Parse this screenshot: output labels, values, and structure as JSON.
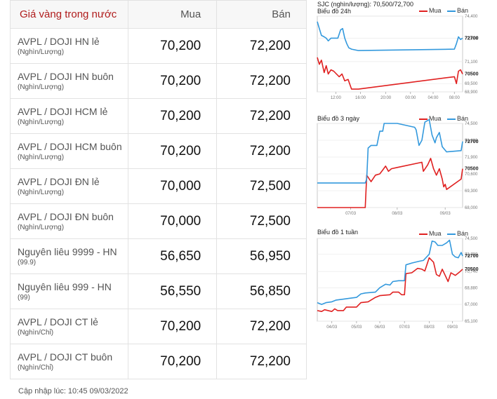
{
  "table": {
    "header": {
      "name": "Giá vàng trong nước",
      "buy": "Mua",
      "sell": "Bán"
    },
    "rows": [
      {
        "product": "AVPL / DOJI HN lẻ",
        "unit": "(Nghìn/Lượng)",
        "buy": "70,200",
        "sell": "72,200"
      },
      {
        "product": "AVPL / DOJI HN buôn",
        "unit": "(Nghìn/Lượng)",
        "buy": "70,200",
        "sell": "72,200"
      },
      {
        "product": "AVPL / DOJI HCM lẻ",
        "unit": "(Nghìn/Lượng)",
        "buy": "70,200",
        "sell": "72,200"
      },
      {
        "product": "AVPL / DOJI HCM buôn",
        "unit": "(Nghìn/Lượng)",
        "buy": "70,200",
        "sell": "72,200"
      },
      {
        "product": "AVPL / DOJI ĐN lẻ",
        "unit": "(Nghìn/Lượng)",
        "buy": "70,000",
        "sell": "72,500"
      },
      {
        "product": "AVPL / DOJI ĐN buôn",
        "unit": "(Nghìn/Lượng)",
        "buy": "70,000",
        "sell": "72,500"
      },
      {
        "product": "Nguyên liêu 9999 - HN",
        "unit": "(99.9)",
        "buy": "56,650",
        "sell": "56,950"
      },
      {
        "product": "Nguyên liêu 999 - HN",
        "unit": "(99)",
        "buy": "56,550",
        "sell": "56,850"
      },
      {
        "product": "AVPL / DOJI CT lẻ",
        "unit": "(Nghìn/Chỉ)",
        "buy": "70,200",
        "sell": "72,200"
      },
      {
        "product": "AVPL / DOJI CT buôn",
        "unit": "(Nghìn/Chỉ)",
        "buy": "70,200",
        "sell": "72,200"
      }
    ]
  },
  "updated": "Cập nhập lúc: 10:45 09/03/2022",
  "sjc_header": "SJC (nghìn/lượng): 70,500/72,700",
  "colors": {
    "buy": "#e02020",
    "sell": "#3399dd",
    "title": "#b01c1c"
  },
  "chart_data": [
    {
      "type": "line",
      "title": "Biểu đồ 24h",
      "x": [
        0,
        1,
        2,
        3,
        4,
        5,
        6,
        7,
        8,
        9,
        10,
        11,
        12,
        13,
        14,
        15,
        16,
        17,
        18,
        19,
        20
      ],
      "xticks": [
        {
          "label": "12:00",
          "x": 2.7
        },
        {
          "label": "16:00",
          "x": 6.3
        },
        {
          "label": "20:00",
          "x": 10.0
        },
        {
          "label": "00:00",
          "x": 13.6
        },
        {
          "label": "04:00",
          "x": 16.9
        },
        {
          "label": "08:00",
          "x": 20.0
        }
      ],
      "yticks": [
        74400,
        72800,
        71100,
        69500,
        68900
      ],
      "ytick_labels": [
        "74,400",
        "72,800",
        "71,100",
        "69,500",
        "68,900"
      ],
      "ylim": [
        68900,
        74400
      ],
      "value_labels": {
        "sell": "72700",
        "buy": "70500"
      },
      "series": [
        {
          "name": "Mua",
          "color": "#e02020",
          "points": [
            [
              0,
              71400
            ],
            [
              0.3,
              70900
            ],
            [
              0.6,
              71200
            ],
            [
              1.0,
              70300
            ],
            [
              1.3,
              70800
            ],
            [
              1.6,
              70200
            ],
            [
              2.0,
              70500
            ],
            [
              2.4,
              70400
            ],
            [
              2.8,
              70200
            ],
            [
              3.2,
              70000
            ],
            [
              3.6,
              70200
            ],
            [
              4.0,
              69700
            ],
            [
              4.5,
              69800
            ],
            [
              5.0,
              69100
            ],
            [
              6.0,
              69100
            ],
            [
              20.0,
              70000
            ],
            [
              20.3,
              69500
            ],
            [
              20.6,
              70400
            ],
            [
              20.9,
              70500
            ],
            [
              21.2,
              70200
            ]
          ]
        },
        {
          "name": "Bán",
          "color": "#3399dd",
          "points": [
            [
              0,
              74000
            ],
            [
              0.3,
              73500
            ],
            [
              0.6,
              73000
            ],
            [
              1.0,
              72900
            ],
            [
              1.3,
              72800
            ],
            [
              1.6,
              72600
            ],
            [
              2.0,
              72800
            ],
            [
              3.0,
              72800
            ],
            [
              3.4,
              73400
            ],
            [
              3.7,
              73500
            ],
            [
              4.0,
              72800
            ],
            [
              4.3,
              72400
            ],
            [
              4.6,
              72100
            ],
            [
              5.0,
              72000
            ],
            [
              6.0,
              71900
            ],
            [
              20.0,
              72000
            ],
            [
              20.3,
              72400
            ],
            [
              20.6,
              72900
            ],
            [
              20.9,
              72700
            ],
            [
              21.2,
              72800
            ]
          ]
        }
      ]
    },
    {
      "type": "line",
      "title": "Biểu đồ 3 ngày",
      "xticks": [
        {
          "label": "07/03",
          "x": 0.23
        },
        {
          "label": "08/03",
          "x": 0.55
        },
        {
          "label": "09/03",
          "x": 0.88
        }
      ],
      "yticks": [
        74500,
        73200,
        71900,
        70600,
        69300,
        68000
      ],
      "ytick_labels": [
        "74,500",
        "73,200",
        "71,900",
        "70,600",
        "69,300",
        "68,000"
      ],
      "ylim": [
        68000,
        74500
      ],
      "value_labels": {
        "sell": "72700",
        "buy": "70500"
      },
      "series": [
        {
          "name": "Mua",
          "color": "#e02020",
          "points": [
            [
              0.0,
              68000
            ],
            [
              0.33,
              68000
            ],
            [
              0.34,
              70500
            ],
            [
              0.37,
              70000
            ],
            [
              0.4,
              70500
            ],
            [
              0.43,
              70600
            ],
            [
              0.45,
              70900
            ],
            [
              0.47,
              71200
            ],
            [
              0.49,
              70800
            ],
            [
              0.51,
              71000
            ],
            [
              0.55,
              71100
            ],
            [
              0.72,
              71500
            ],
            [
              0.73,
              70800
            ],
            [
              0.76,
              71300
            ],
            [
              0.78,
              71800
            ],
            [
              0.8,
              71000
            ],
            [
              0.82,
              70500
            ],
            [
              0.84,
              71000
            ],
            [
              0.86,
              70200
            ],
            [
              0.87,
              69600
            ],
            [
              0.88,
              69800
            ],
            [
              0.89,
              69400
            ],
            [
              0.99,
              70200
            ],
            [
              1.0,
              71000
            ]
          ]
        },
        {
          "name": "Bán",
          "color": "#3399dd",
          "points": [
            [
              0.0,
              69900
            ],
            [
              0.33,
              69900
            ],
            [
              0.34,
              70200
            ],
            [
              0.35,
              72600
            ],
            [
              0.37,
              72800
            ],
            [
              0.41,
              72800
            ],
            [
              0.43,
              73900
            ],
            [
              0.45,
              73900
            ],
            [
              0.46,
              74500
            ],
            [
              0.55,
              74500
            ],
            [
              0.67,
              74200
            ],
            [
              0.68,
              74000
            ],
            [
              0.7,
              72800
            ],
            [
              0.72,
              73200
            ],
            [
              0.74,
              74600
            ],
            [
              0.77,
              74800
            ],
            [
              0.79,
              73600
            ],
            [
              0.81,
              73000
            ],
            [
              0.82,
              73400
            ],
            [
              0.84,
              73800
            ],
            [
              0.86,
              72700
            ],
            [
              0.89,
              72300
            ],
            [
              0.99,
              72400
            ],
            [
              1.0,
              73100
            ]
          ]
        }
      ]
    },
    {
      "type": "line",
      "title": "Biểu đồ 1 tuần",
      "xticks": [
        {
          "label": "04/03",
          "x": 0.1
        },
        {
          "label": "05/03",
          "x": 0.27
        },
        {
          "label": "06/03",
          "x": 0.43
        },
        {
          "label": "07/03",
          "x": 0.6
        },
        {
          "label": "08/03",
          "x": 0.77
        },
        {
          "label": "09/03",
          "x": 0.93
        }
      ],
      "yticks": [
        74500,
        72700,
        70740,
        68880,
        67000,
        65100
      ],
      "ytick_labels": [
        "74,500",
        "72,700",
        "70,740",
        "68,880",
        "67,000",
        "65,100"
      ],
      "ylim": [
        65100,
        74500
      ],
      "value_labels": {
        "sell": "72700",
        "buy": "70500"
      },
      "series": [
        {
          "name": "Mua",
          "color": "#e02020",
          "points": [
            [
              0.0,
              66300
            ],
            [
              0.03,
              66200
            ],
            [
              0.05,
              66400
            ],
            [
              0.1,
              66200
            ],
            [
              0.12,
              66500
            ],
            [
              0.14,
              66300
            ],
            [
              0.18,
              66300
            ],
            [
              0.2,
              66700
            ],
            [
              0.27,
              66700
            ],
            [
              0.3,
              67200
            ],
            [
              0.35,
              67300
            ],
            [
              0.4,
              67800
            ],
            [
              0.43,
              68000
            ],
            [
              0.5,
              68100
            ],
            [
              0.52,
              68400
            ],
            [
              0.56,
              68400
            ],
            [
              0.58,
              68100
            ],
            [
              0.6,
              68100
            ],
            [
              0.61,
              70500
            ],
            [
              0.65,
              70600
            ],
            [
              0.69,
              71100
            ],
            [
              0.72,
              71000
            ],
            [
              0.74,
              70800
            ],
            [
              0.77,
              72300
            ],
            [
              0.8,
              71800
            ],
            [
              0.82,
              70400
            ],
            [
              0.84,
              70200
            ],
            [
              0.86,
              71000
            ],
            [
              0.88,
              70300
            ],
            [
              0.9,
              69600
            ],
            [
              0.92,
              70600
            ],
            [
              0.95,
              70300
            ],
            [
              0.98,
              70700
            ],
            [
              1.0,
              71000
            ]
          ]
        },
        {
          "name": "Bán",
          "color": "#3399dd",
          "points": [
            [
              0.0,
              67200
            ],
            [
              0.03,
              67000
            ],
            [
              0.06,
              67200
            ],
            [
              0.1,
              67300
            ],
            [
              0.13,
              67500
            ],
            [
              0.18,
              67600
            ],
            [
              0.22,
              67700
            ],
            [
              0.27,
              67800
            ],
            [
              0.3,
              68200
            ],
            [
              0.33,
              68300
            ],
            [
              0.4,
              68400
            ],
            [
              0.43,
              68900
            ],
            [
              0.47,
              69300
            ],
            [
              0.5,
              69200
            ],
            [
              0.52,
              69600
            ],
            [
              0.56,
              69700
            ],
            [
              0.6,
              69700
            ],
            [
              0.61,
              71500
            ],
            [
              0.65,
              71700
            ],
            [
              0.7,
              71900
            ],
            [
              0.73,
              72000
            ],
            [
              0.77,
              72700
            ],
            [
              0.79,
              74200
            ],
            [
              0.81,
              74100
            ],
            [
              0.83,
              73700
            ],
            [
              0.86,
              73700
            ],
            [
              0.89,
              74000
            ],
            [
              0.91,
              74300
            ],
            [
              0.93,
              72700
            ],
            [
              0.95,
              72400
            ],
            [
              0.97,
              72300
            ],
            [
              0.99,
              72900
            ],
            [
              1.0,
              72500
            ]
          ]
        }
      ]
    }
  ]
}
